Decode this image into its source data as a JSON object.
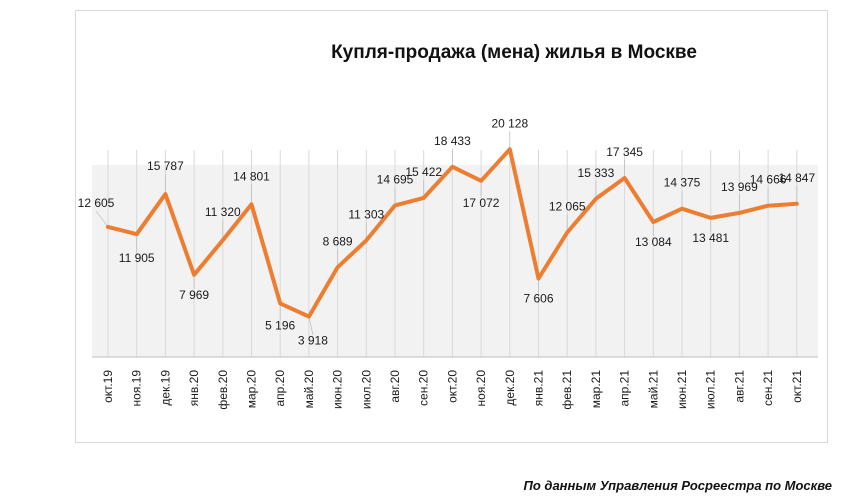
{
  "colors": {
    "line": "#ED7D31",
    "grid": "#d9d9d9",
    "shadow": "#f2f2f2"
  },
  "source": "По данным Управления Росреестра по Москве",
  "chart_data": {
    "type": "line",
    "title": "Купля-продажа (мена) жилья в Москве",
    "xlabel": "",
    "ylabel": "",
    "ylim": [
      0,
      22000
    ],
    "grid": "vertical",
    "legend": "none",
    "categories": [
      "окт.19",
      "ноя.19",
      "дек.19",
      "янв.20",
      "фев.20",
      "мар.20",
      "апр.20",
      "май.20",
      "июн.20",
      "июл.20",
      "авг.20",
      "сен.20",
      "окт.20",
      "ноя.20",
      "дек.20",
      "янв.21",
      "фев.21",
      "мар.21",
      "апр.21",
      "май.21",
      "июн.21",
      "июл.21",
      "авг.21",
      "сен.21",
      "окт.21"
    ],
    "values": [
      12605,
      11905,
      15787,
      7969,
      11320,
      14801,
      5196,
      3918,
      8689,
      11303,
      14695,
      15422,
      18433,
      17072,
      20128,
      7606,
      12065,
      15333,
      17345,
      13084,
      14375,
      13481,
      13969,
      14666,
      14847
    ],
    "labels": [
      "12 605",
      "11 905",
      "15 787",
      "7 969",
      "11 320",
      "14 801",
      "5 196",
      "3 918",
      "8 689",
      "11 303",
      "14 695",
      "15 422",
      "18 433",
      "17 072",
      "20 128",
      "7 606",
      "12 065",
      "15 333",
      "17 345",
      "13 084",
      "14 375",
      "13 481",
      "13 969",
      "14 666",
      "14 847"
    ]
  }
}
